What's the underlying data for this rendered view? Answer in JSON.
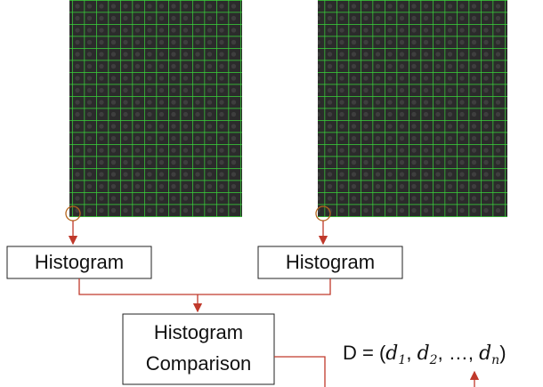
{
  "nodes": [
    {
      "label": "Histogram"
    },
    {
      "label": "Histogram"
    },
    {
      "label_lines": [
        "Histogram",
        "Comparison"
      ]
    }
  ],
  "formula": {
    "lhs": "D = (",
    "terms": [
      {
        "base": "d",
        "sub": "1"
      },
      {
        "base": "d",
        "sub": "2"
      },
      {
        "base": "…"
      },
      {
        "base": "d",
        "sub": "n"
      }
    ],
    "separator": ",",
    "close": ")"
  }
}
